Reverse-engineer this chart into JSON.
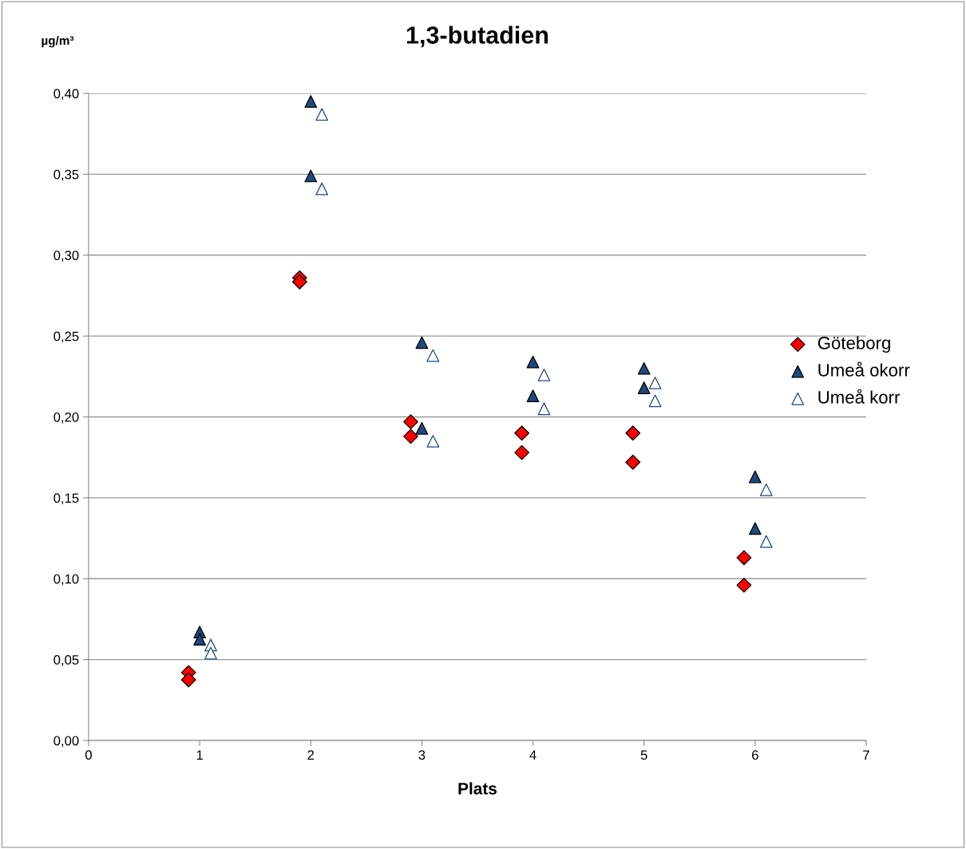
{
  "chart_data": {
    "type": "scatter",
    "title": "1,3-butadien",
    "xlabel": "Plats",
    "ylabel": "µg/m³",
    "xlim": [
      0,
      7
    ],
    "xticks": [
      0,
      1,
      2,
      3,
      4,
      5,
      6,
      7
    ],
    "ylim": [
      0,
      0.4
    ],
    "yticks": [
      {
        "value": 0,
        "label": "0,00"
      },
      {
        "value": 0.05,
        "label": "0,05"
      },
      {
        "value": 0.1,
        "label": "0,10"
      },
      {
        "value": 0.15,
        "label": "0,15"
      },
      {
        "value": 0.2,
        "label": "0,20"
      },
      {
        "value": 0.25,
        "label": "0,25"
      },
      {
        "value": 0.3,
        "label": "0,30"
      },
      {
        "value": 0.35,
        "label": "0,35"
      },
      {
        "value": 0.4,
        "label": "0,40"
      }
    ],
    "grid": "y",
    "legend": "right",
    "series": [
      {
        "name": "Göteborg",
        "color": "#ff0000",
        "marker": "diamond",
        "x": [
          0.9,
          0.9,
          1.9,
          1.9,
          2.9,
          2.9,
          3.9,
          3.9,
          4.9,
          4.9,
          5.9,
          5.9
        ],
        "values": [
          0.042,
          0.0375,
          0.286,
          0.2835,
          0.197,
          0.188,
          0.19,
          0.178,
          0.19,
          0.172,
          0.113,
          0.096
        ]
      },
      {
        "name": "Umeå okorr",
        "color": "#1f497d",
        "marker": "triangle",
        "x": [
          1.0,
          1.0,
          2.0,
          2.0,
          3.0,
          3.0,
          4.0,
          4.0,
          5.0,
          5.0,
          6.0,
          6.0
        ],
        "values": [
          0.067,
          0.0626,
          0.395,
          0.349,
          0.246,
          0.193,
          0.234,
          0.213,
          0.23,
          0.218,
          0.163,
          0.131
        ]
      },
      {
        "name": "Umeå korr",
        "color": "#1f497d",
        "marker": "triangle",
        "x": [
          1.1,
          1.1,
          2.1,
          2.1,
          3.1,
          3.1,
          4.1,
          4.1,
          5.1,
          5.1,
          6.1,
          6.1
        ],
        "values": [
          0.059,
          0.054,
          0.387,
          0.341,
          0.238,
          0.185,
          0.226,
          0.205,
          0.221,
          0.21,
          0.155,
          0.123
        ]
      }
    ]
  }
}
